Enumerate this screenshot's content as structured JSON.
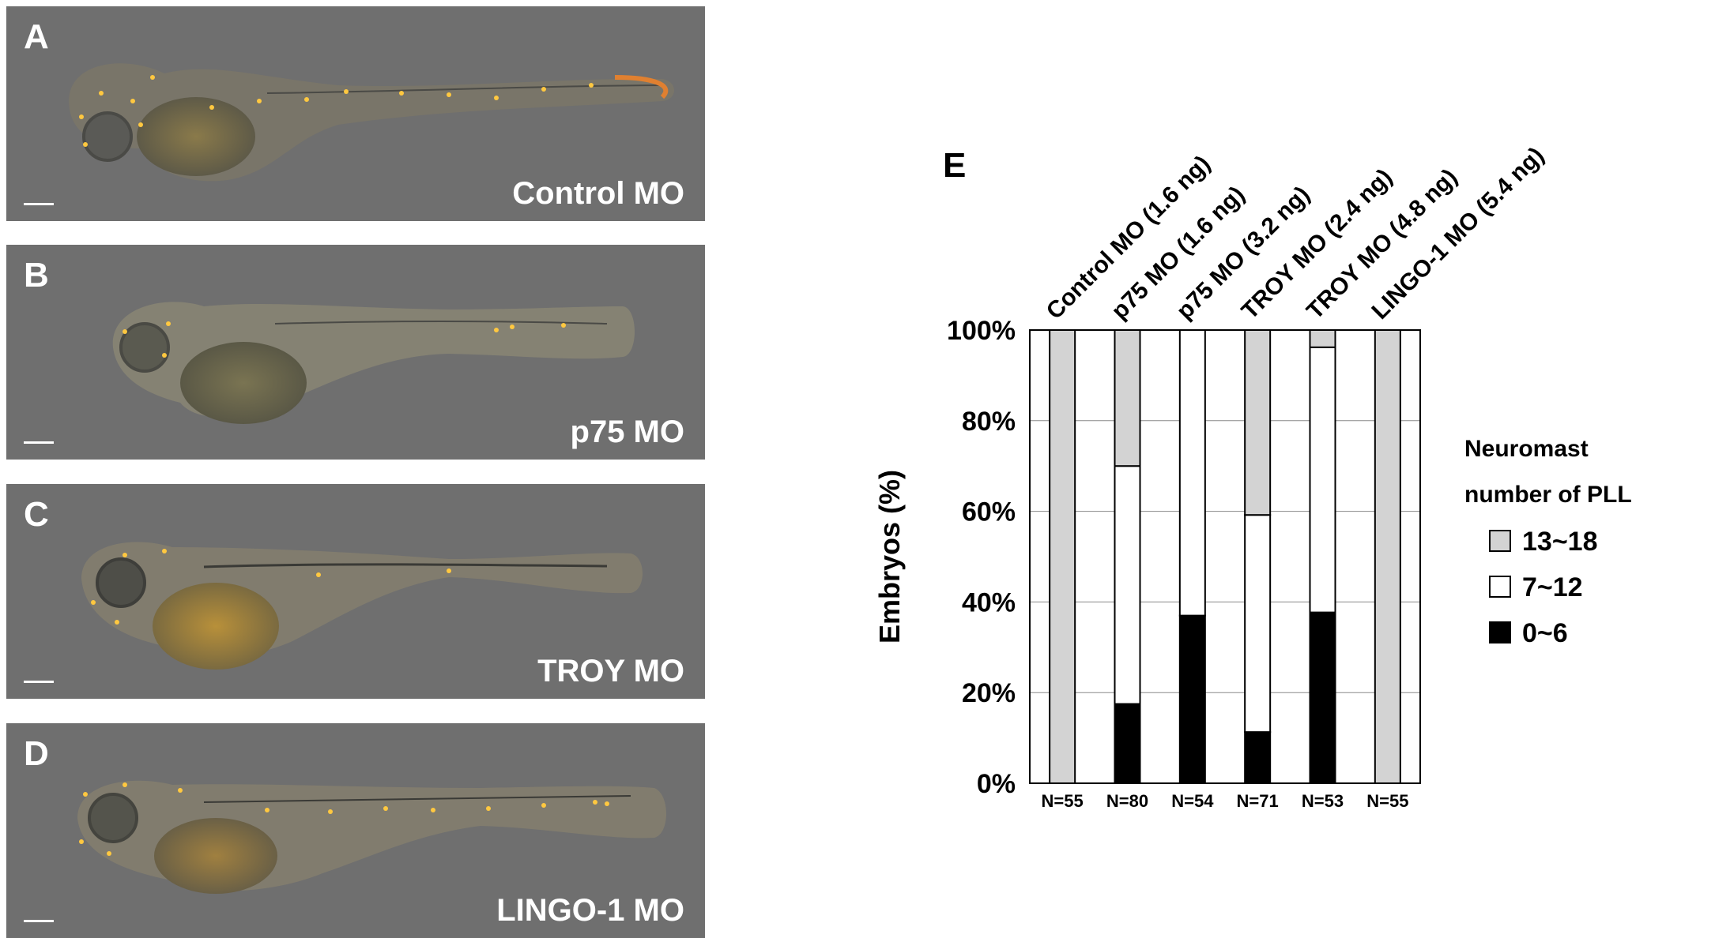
{
  "panels": [
    {
      "letter": "A",
      "label": "Control MO"
    },
    {
      "letter": "B",
      "label": "p75 MO"
    },
    {
      "letter": "C",
      "label": "TROY MO"
    },
    {
      "letter": "D",
      "label": "LINGO-1 MO"
    }
  ],
  "chart_data": {
    "type": "bar",
    "stacked": true,
    "panel_letter": "E",
    "categories": [
      "Control MO (1.6 ng)",
      "p75 MO (1.6 ng)",
      "p75 MO (3.2 ng)",
      "TROY MO (2.4 ng)",
      "TROY MO (4.8 ng)",
      "LINGO-1 MO (5.4 ng)"
    ],
    "n_labels": [
      "N=55",
      "N=80",
      "N=54",
      "N=71",
      "N=53",
      "N=55"
    ],
    "series": [
      {
        "name": "0~6",
        "color": "#000000",
        "values": [
          0,
          17.5,
          37,
          11.3,
          37.7,
          0
        ]
      },
      {
        "name": "7~12",
        "color": "#ffffff",
        "values": [
          0,
          52.5,
          63,
          47.9,
          58.5,
          0
        ]
      },
      {
        "name": "13~18",
        "color": "#d3d3d3",
        "values": [
          100,
          30,
          0,
          40.8,
          3.8,
          100
        ]
      }
    ],
    "ylabel": "Embryos (%)",
    "ylim": [
      0,
      100
    ],
    "yticks": [
      "0%",
      "20%",
      "40%",
      "60%",
      "80%",
      "100%"
    ],
    "grid": true,
    "legend_title_line1": "Neuromast",
    "legend_title_line2": "number of PLL",
    "legend_order": [
      "13~18",
      "7~12",
      "0~6"
    ],
    "legend_position": "right"
  }
}
